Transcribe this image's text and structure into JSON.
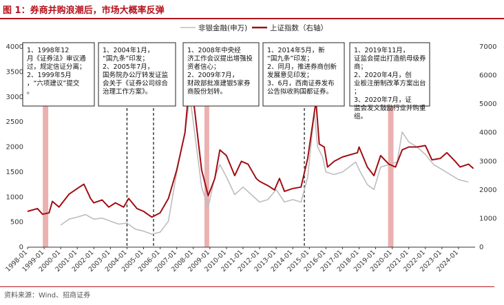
{
  "title": "图 1：券商并购浪潮后，市场大概率反弹",
  "source": "资料来源：Wind、招商证券",
  "colors": {
    "accent": "#b5121b",
    "series_gray": "#bdbdbd",
    "series_red": "#a00d12",
    "shade": "#e8a3a3"
  },
  "chart_data": {
    "type": "line",
    "x_ticks": [
      "1998-01",
      "1999-01",
      "2000-01",
      "2001-01",
      "2002-01",
      "2003-01",
      "2004-01",
      "2005-01",
      "2006-01",
      "2007-01",
      "2008-01",
      "2009-01",
      "2010-01",
      "2011-01",
      "2012-01",
      "2013-01",
      "2014-01",
      "2015-01",
      "2016-01",
      "2017-01",
      "2018-01",
      "2019-01",
      "2020-01",
      "2021-01",
      "2022-01",
      "2023-01",
      "2024-01"
    ],
    "y_left": {
      "ticks": [
        0,
        500,
        1000,
        1500,
        2000,
        2500,
        3000,
        3500,
        4000
      ],
      "range": [
        0,
        4000
      ]
    },
    "y_right": {
      "ticks": [
        0,
        1000,
        2000,
        3000,
        4000,
        5000,
        6000,
        7000
      ],
      "range": [
        0,
        7000
      ]
    },
    "series": [
      {
        "name": "非银金融(申万)",
        "axis": "left",
        "color": "#bdbdbd",
        "points": [
          [
            2000.0,
            440
          ],
          [
            2000.5,
            560
          ],
          [
            2001.0,
            600
          ],
          [
            2001.5,
            650
          ],
          [
            2002.0,
            560
          ],
          [
            2002.5,
            580
          ],
          [
            2003.0,
            520
          ],
          [
            2003.5,
            460
          ],
          [
            2004.0,
            480
          ],
          [
            2004.5,
            360
          ],
          [
            2005.0,
            320
          ],
          [
            2005.5,
            260
          ],
          [
            2006.0,
            300
          ],
          [
            2006.5,
            520
          ],
          [
            2007.0,
            1500
          ],
          [
            2007.5,
            2300
          ],
          [
            2007.8,
            3000
          ],
          [
            2008.0,
            2500
          ],
          [
            2008.5,
            1200
          ],
          [
            2008.9,
            800
          ],
          [
            2009.3,
            1400
          ],
          [
            2009.6,
            1650
          ],
          [
            2010.0,
            1400
          ],
          [
            2010.5,
            1050
          ],
          [
            2011.0,
            1200
          ],
          [
            2011.5,
            1050
          ],
          [
            2012.0,
            900
          ],
          [
            2012.5,
            950
          ],
          [
            2013.0,
            1150
          ],
          [
            2013.5,
            900
          ],
          [
            2014.0,
            950
          ],
          [
            2014.5,
            900
          ],
          [
            2014.9,
            1400
          ],
          [
            2015.3,
            2700
          ],
          [
            2015.5,
            2000
          ],
          [
            2015.8,
            1800
          ],
          [
            2016.0,
            1500
          ],
          [
            2016.5,
            1450
          ],
          [
            2017.0,
            1500
          ],
          [
            2017.8,
            1700
          ],
          [
            2018.0,
            1550
          ],
          [
            2018.5,
            1250
          ],
          [
            2018.9,
            1150
          ],
          [
            2019.3,
            1600
          ],
          [
            2019.8,
            1650
          ],
          [
            2020.3,
            1700
          ],
          [
            2020.6,
            2300
          ],
          [
            2021.0,
            2100
          ],
          [
            2021.5,
            2000
          ],
          [
            2022.0,
            1850
          ],
          [
            2022.5,
            1650
          ],
          [
            2023.0,
            1550
          ],
          [
            2023.5,
            1450
          ],
          [
            2024.0,
            1350
          ],
          [
            2024.6,
            1300
          ]
        ]
      },
      {
        "name": "上证指数（右轴）",
        "axis": "right",
        "color": "#a00d12",
        "points": [
          [
            1998.0,
            1250
          ],
          [
            1998.3,
            1300
          ],
          [
            1998.6,
            1350
          ],
          [
            1998.9,
            1150
          ],
          [
            1999.3,
            1200
          ],
          [
            1999.5,
            1600
          ],
          [
            1999.9,
            1400
          ],
          [
            2000.5,
            1850
          ],
          [
            2001.0,
            2050
          ],
          [
            2001.4,
            2200
          ],
          [
            2001.8,
            1700
          ],
          [
            2002.0,
            1550
          ],
          [
            2002.5,
            1650
          ],
          [
            2002.9,
            1400
          ],
          [
            2003.3,
            1550
          ],
          [
            2003.8,
            1400
          ],
          [
            2004.1,
            1700
          ],
          [
            2004.6,
            1350
          ],
          [
            2005.0,
            1250
          ],
          [
            2005.5,
            1050
          ],
          [
            2006.0,
            1200
          ],
          [
            2006.5,
            1700
          ],
          [
            2007.0,
            2700
          ],
          [
            2007.5,
            4000
          ],
          [
            2007.8,
            6000
          ],
          [
            2008.0,
            5200
          ],
          [
            2008.5,
            2700
          ],
          [
            2008.9,
            1800
          ],
          [
            2009.3,
            2400
          ],
          [
            2009.6,
            3400
          ],
          [
            2010.0,
            3200
          ],
          [
            2010.5,
            2500
          ],
          [
            2010.9,
            3000
          ],
          [
            2011.3,
            2900
          ],
          [
            2011.8,
            2400
          ],
          [
            2012.0,
            2300
          ],
          [
            2012.5,
            2150
          ],
          [
            2012.9,
            2000
          ],
          [
            2013.2,
            2400
          ],
          [
            2013.5,
            1950
          ],
          [
            2014.0,
            2050
          ],
          [
            2014.5,
            2100
          ],
          [
            2014.9,
            3100
          ],
          [
            2015.4,
            5100
          ],
          [
            2015.6,
            3600
          ],
          [
            2015.9,
            3500
          ],
          [
            2016.1,
            2800
          ],
          [
            2016.5,
            3000
          ],
          [
            2017.0,
            3150
          ],
          [
            2017.9,
            3300
          ],
          [
            2018.0,
            3500
          ],
          [
            2018.5,
            2800
          ],
          [
            2018.9,
            2500
          ],
          [
            2019.3,
            3200
          ],
          [
            2019.8,
            2900
          ],
          [
            2020.2,
            2800
          ],
          [
            2020.6,
            3400
          ],
          [
            2021.0,
            3500
          ],
          [
            2021.5,
            3500
          ],
          [
            2022.0,
            3550
          ],
          [
            2022.4,
            3050
          ],
          [
            2022.9,
            3100
          ],
          [
            2023.3,
            3300
          ],
          [
            2023.8,
            3000
          ],
          [
            2024.1,
            2800
          ],
          [
            2024.6,
            2900
          ],
          [
            2024.9,
            2750
          ]
        ]
      }
    ],
    "shaded_periods": [
      [
        1998.92,
        1999.25
      ],
      [
        2008.67,
        2008.96
      ],
      [
        2019.75,
        2020.08
      ]
    ],
    "dashed_markers": [
      2004.0,
      2005.6,
      2014.7
    ],
    "annotations": [
      "1、1998年12月《证券法》审议通过，规定信证分离；\n2、1999年5月，“六项建议”提交。",
      "1、2004年1月，“国九条”印发；\n2、2005年7月，国务院办公厅转发证监会关于《证券公司综合治理工作方案》。",
      "1、2008年中央经济工作会议提出增强投资者信心；\n2、2009年7月，财政部批准建银5家券商股份划转。",
      "1、2014年5月，新“国九条”印发；\n2、同月，推进券商创新发展意见印发；\n3、6月，西南证券发布公告拟收购国都证券。",
      "1、2019年11月，证监会提出打造航母级券商；\n2、2020年4月，创业板注册制改革方案出台；\n3、2020年7月，证监会发文鼓励行业并购重组。"
    ]
  }
}
